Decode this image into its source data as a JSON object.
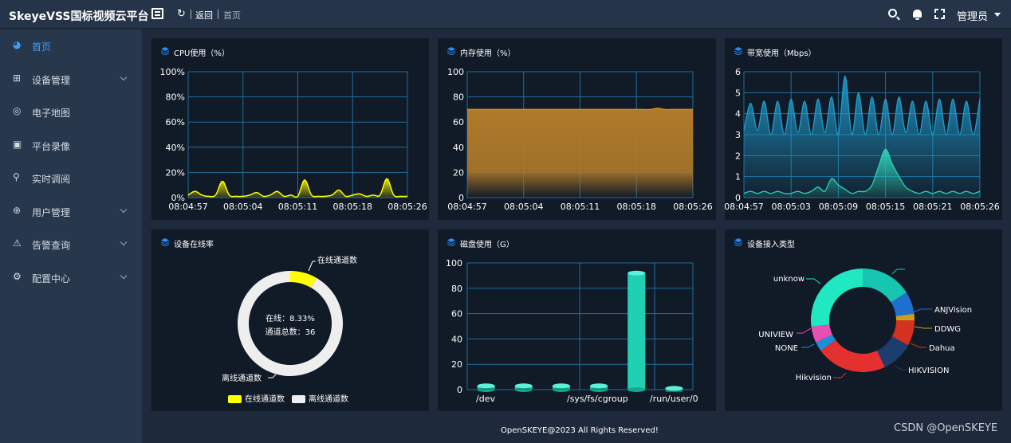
{
  "header": {
    "brand": "SkeyeVSS国标视频云平台",
    "refresh_icon": "refresh-icon",
    "back_label": "返回",
    "breadcrumb": "首页",
    "user": "管理员"
  },
  "sidebar": {
    "items": [
      {
        "label": "首页",
        "icon": "dashboard-icon",
        "active": true,
        "expandable": false
      },
      {
        "label": "设备管理",
        "icon": "device-tree-icon",
        "active": false,
        "expandable": true
      },
      {
        "label": "电子地图",
        "icon": "map-pin-icon",
        "active": false,
        "expandable": false
      },
      {
        "label": "平台录像",
        "icon": "video-icon",
        "active": false,
        "expandable": false
      },
      {
        "label": "实时调阅",
        "icon": "camera-icon",
        "active": false,
        "expandable": false
      },
      {
        "label": "用户管理",
        "icon": "globe-icon",
        "active": false,
        "expandable": true
      },
      {
        "label": "告警查询",
        "icon": "alarm-icon",
        "active": false,
        "expandable": true
      },
      {
        "label": "配置中心",
        "icon": "gear-icon",
        "active": false,
        "expandable": true
      }
    ]
  },
  "colors": {
    "accent": "#409eff",
    "cpu": "#ffff00",
    "memory": "#b07a2a",
    "bandwidth_in": "#1f9ed0",
    "bandwidth_out": "#2ed3b4",
    "disk": "#1fd1b2",
    "online": "#ffff00",
    "offline": "#eeeeee"
  },
  "panels": {
    "cpu": {
      "title": "CPU使用（%）"
    },
    "mem": {
      "title": "内存使用（%）"
    },
    "bw": {
      "title": "带宽使用（Mbps）"
    },
    "online": {
      "title": "设备在线率"
    },
    "disk": {
      "title": "磁盘使用（G）"
    },
    "devtype": {
      "title": "设备接入类型"
    }
  },
  "chart_data": [
    {
      "id": "cpu",
      "type": "area",
      "title": "CPU使用（%）",
      "ylim": [
        0,
        100
      ],
      "yticks": [
        "0%",
        "20%",
        "40%",
        "60%",
        "80%",
        "100%"
      ],
      "xticks": [
        "08:04:57",
        "08:05:04",
        "08:05:11",
        "08:05:18",
        "08:05:26"
      ],
      "grid": true,
      "series": [
        {
          "values": [
            2,
            5,
            2,
            1,
            2,
            13,
            2,
            1,
            1,
            2,
            4,
            1,
            2,
            5,
            1,
            2,
            1,
            14,
            2,
            1,
            1,
            2,
            6,
            1,
            2,
            3,
            1,
            2,
            2,
            15,
            2,
            1,
            1
          ]
        }
      ]
    },
    {
      "id": "mem",
      "type": "area",
      "title": "内存使用（%）",
      "ylim": [
        0,
        100
      ],
      "yticks": [
        "0",
        "20",
        "40",
        "60",
        "80",
        "100"
      ],
      "xticks": [
        "08:04:57",
        "08:05:04",
        "08:05:11",
        "08:05:18",
        "08:05:26"
      ],
      "grid": true,
      "series": [
        {
          "values": [
            70,
            70,
            70,
            70,
            70,
            70,
            70,
            70,
            70,
            70,
            70,
            70,
            70,
            70,
            70,
            70,
            70,
            70,
            70,
            70,
            70,
            70,
            70,
            70,
            70,
            70,
            70,
            71,
            70,
            70,
            70,
            70,
            70
          ]
        }
      ]
    },
    {
      "id": "bw",
      "type": "area",
      "title": "带宽使用（Mbps）",
      "ylim": [
        0,
        6
      ],
      "yticks": [
        "0",
        "1",
        "2",
        "3",
        "4",
        "5",
        "6"
      ],
      "xticks": [
        "08:04:57",
        "08:05:03",
        "08:05:09",
        "08:05:15",
        "08:05:21",
        "08:05:26"
      ],
      "grid": true,
      "series": [
        {
          "values": [
            3.2,
            4.5,
            3.2,
            4.6,
            3.0,
            4.6,
            3.0,
            4.7,
            3.1,
            4.6,
            3.0,
            4.7,
            3.1,
            4.8,
            3.0,
            5.8,
            3.0,
            5.0,
            3.0,
            4.8,
            3.0,
            4.7,
            3.0,
            4.8,
            3.1,
            4.6,
            3.0,
            4.6,
            3.0,
            4.7,
            3.0,
            4.7,
            3.0,
            4.6,
            3.0,
            4.7
          ]
        },
        {
          "values": [
            0.2,
            0.3,
            0.2,
            0.3,
            0.2,
            0.3,
            0.2,
            0.2,
            0.3,
            0.2,
            0.3,
            0.5,
            0.3,
            0.9,
            0.6,
            0.4,
            0.2,
            0.3,
            0.3,
            0.6,
            1.5,
            2.3,
            1.6,
            1.0,
            0.5,
            0.3,
            0.2,
            0.3,
            0.2,
            0.3,
            0.2,
            0.3,
            0.2,
            0.3,
            0.2,
            0.3
          ]
        }
      ]
    },
    {
      "id": "online",
      "type": "pie",
      "title": "设备在线率",
      "center_lines": [
        "在线：8.33%",
        "通道总数：36"
      ],
      "legend": [
        "在线通道数",
        "离线通道数"
      ],
      "slices": [
        {
          "label": "在线通道数",
          "value": 3
        },
        {
          "label": "离线通道数",
          "value": 33
        }
      ]
    },
    {
      "id": "disk",
      "type": "bar",
      "title": "磁盘使用（G）",
      "ylim": [
        0,
        100
      ],
      "yticks": [
        "0",
        "20",
        "40",
        "60",
        "80",
        "100"
      ],
      "categories_shown": [
        "/dev",
        "/sys/fs/cgroup",
        "/run/user/0"
      ],
      "values": [
        3,
        3,
        3,
        3,
        92,
        1
      ]
    },
    {
      "id": "devtype",
      "type": "pie",
      "title": "设备接入类型",
      "slices": [
        {
          "label": "",
          "value": 16
        },
        {
          "label": "ANJVision",
          "value": 7
        },
        {
          "label": "DDWG",
          "value": 2
        },
        {
          "label": "Dahua",
          "value": 8
        },
        {
          "label": "HIKVISION",
          "value": 10
        },
        {
          "label": "Hikvision",
          "value": 22
        },
        {
          "label": "NONE",
          "value": 3
        },
        {
          "label": "UNIVIEW",
          "value": 5
        },
        {
          "label": "unknow",
          "value": 27
        }
      ],
      "colors": [
        "#16c6b0",
        "#1e6fd0",
        "#c9a020",
        "#d4321e",
        "#1c3d6e",
        "#e53030",
        "#1e8ed6",
        "#e84fb5",
        "#20e8c0"
      ]
    }
  ],
  "footer": "OpenSKEYE@2023 All Rights Reserved!",
  "watermark": "CSDN @OpenSKEYE"
}
